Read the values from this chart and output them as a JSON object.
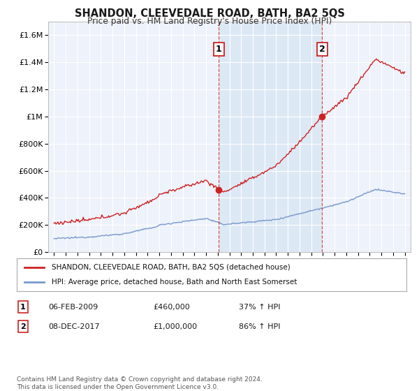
{
  "title": "SHANDON, CLEEVEDALE ROAD, BATH, BA2 5QS",
  "subtitle": "Price paid vs. HM Land Registry's House Price Index (HPI)",
  "sale1_date": "06-FEB-2009",
  "sale1_price": 460000,
  "sale1_label": "37% ↑ HPI",
  "sale2_date": "08-DEC-2017",
  "sale2_price": 1000000,
  "sale2_label": "86% ↑ HPI",
  "ylabel_ticks": [
    "£0",
    "£200K",
    "£400K",
    "£600K",
    "£800K",
    "£1M",
    "£1.2M",
    "£1.4M",
    "£1.6M"
  ],
  "ytick_values": [
    0,
    200000,
    400000,
    600000,
    800000,
    1000000,
    1200000,
    1400000,
    1600000
  ],
  "ylim": [
    0,
    1700000
  ],
  "xlim_start": 1994.5,
  "xlim_end": 2025.5,
  "red_color": "#cc2222",
  "blue_color": "#7799cc",
  "highlight_color": "#dde8f5",
  "legend_label_red": "SHANDON, CLEEVEDALE ROAD, BATH, BA2 5QS (detached house)",
  "legend_label_blue": "HPI: Average price, detached house, Bath and North East Somerset",
  "footer": "Contains HM Land Registry data © Crown copyright and database right 2024.\nThis data is licensed under the Open Government Licence v3.0.",
  "background_color": "#ffffff",
  "plot_bg_color": "#eef2fa",
  "grid_color": "#ffffff"
}
